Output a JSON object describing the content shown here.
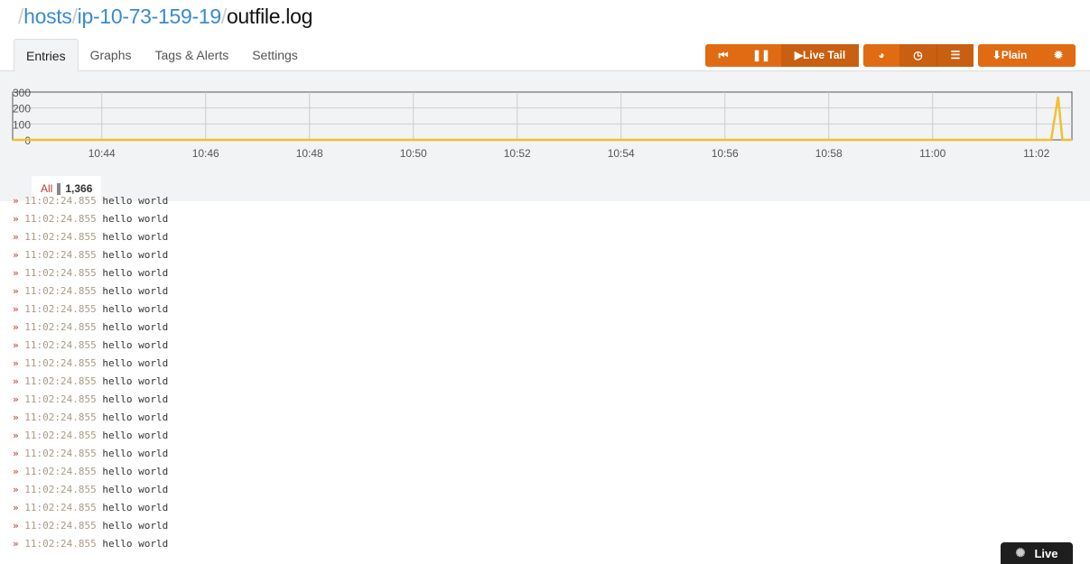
{
  "breadcrumb": {
    "items": [
      "hosts",
      "ip-10-73-159-19"
    ],
    "current": "outfile.log",
    "separator": "/"
  },
  "tabs": [
    {
      "label": "Entries",
      "active": true
    },
    {
      "label": "Graphs"
    },
    {
      "label": "Tags & Alerts"
    },
    {
      "label": "Settings"
    }
  ],
  "toolbar": {
    "accent": "#e06b12",
    "live_tail_label": "Live Tail",
    "plain_label": "Plain",
    "icons": [
      "skip-back-icon",
      "pause-icon",
      "play-icon",
      "pie-chart-icon",
      "clock-icon",
      "list-icon",
      "download-icon",
      "gear-icon"
    ]
  },
  "chart_data": {
    "type": "line",
    "color": "#f0c030",
    "ylim": [
      0,
      300
    ],
    "yticks": [
      "0",
      "100",
      "200",
      "300"
    ],
    "xticks": [
      "10:44",
      "10:46",
      "10:48",
      "10:50",
      "10:52",
      "10:54",
      "10:56",
      "10:58",
      "11:00",
      "11:02"
    ],
    "xrange": [
      "10:42:17",
      "11:02:41"
    ],
    "grid": true,
    "points": [
      [
        "10:42:17",
        0
      ],
      [
        "11:02:17",
        0
      ],
      [
        "11:02:25",
        270
      ],
      [
        "11:02:30",
        0
      ],
      [
        "11:02:41",
        0
      ]
    ]
  },
  "filter": {
    "label": "All",
    "count": "1,366"
  },
  "logs": [
    {
      "time": "11:02:24.855",
      "message": "hello world"
    },
    {
      "time": "11:02:24.855",
      "message": "hello world"
    },
    {
      "time": "11:02:24.855",
      "message": "hello world"
    },
    {
      "time": "11:02:24.855",
      "message": "hello world"
    },
    {
      "time": "11:02:24.855",
      "message": "hello world"
    },
    {
      "time": "11:02:24.855",
      "message": "hello world"
    },
    {
      "time": "11:02:24.855",
      "message": "hello world"
    },
    {
      "time": "11:02:24.855",
      "message": "hello world"
    },
    {
      "time": "11:02:24.855",
      "message": "hello world"
    },
    {
      "time": "11:02:24.855",
      "message": "hello world"
    },
    {
      "time": "11:02:24.855",
      "message": "hello world"
    },
    {
      "time": "11:02:24.855",
      "message": "hello world"
    },
    {
      "time": "11:02:24.855",
      "message": "hello world"
    },
    {
      "time": "11:02:24.855",
      "message": "hello world"
    },
    {
      "time": "11:02:24.855",
      "message": "hello world"
    },
    {
      "time": "11:02:24.855",
      "message": "hello world"
    },
    {
      "time": "11:02:24.855",
      "message": "hello world"
    },
    {
      "time": "11:02:24.855",
      "message": "hello world"
    },
    {
      "time": "11:02:24.855",
      "message": "hello world"
    },
    {
      "time": "11:02:24.855",
      "message": "hello world"
    }
  ],
  "log_marker": "»",
  "live_badge": {
    "label": "Live"
  }
}
